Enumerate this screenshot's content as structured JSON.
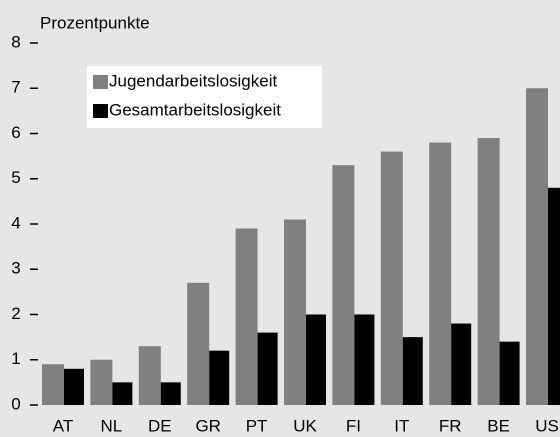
{
  "chart_data": {
    "type": "bar",
    "y_axis_label": "Prozentpunkte",
    "categories": [
      "AT",
      "NL",
      "DE",
      "GR",
      "PT",
      "UK",
      "FI",
      "IT",
      "FR",
      "BE",
      "US"
    ],
    "series": [
      {
        "name": "Jugendarbeitslosigkeit",
        "color": "#808080",
        "values": [
          0.9,
          1.0,
          1.3,
          2.7,
          3.9,
          4.1,
          5.3,
          5.6,
          5.8,
          5.9,
          7.0
        ]
      },
      {
        "name": "Gesamtarbeitslosigkeit",
        "color": "#000000",
        "values": [
          0.8,
          0.5,
          0.5,
          1.2,
          1.6,
          2.0,
          2.0,
          1.5,
          1.8,
          1.4,
          4.8
        ]
      }
    ],
    "ylim": [
      0,
      8
    ],
    "yticks": [
      0,
      1,
      2,
      3,
      4,
      5,
      6,
      7,
      8
    ],
    "legend": "upper left"
  }
}
